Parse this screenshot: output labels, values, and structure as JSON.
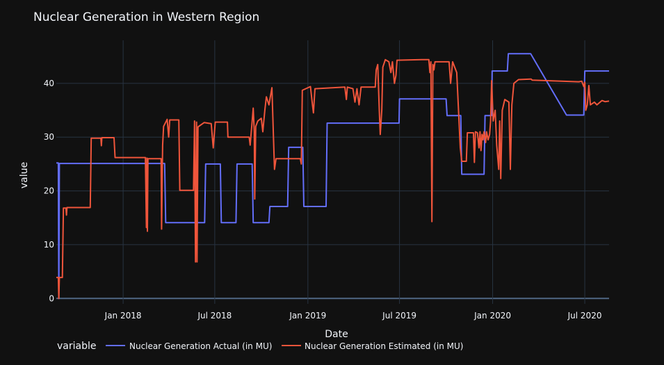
{
  "chart_data": {
    "type": "line",
    "title": "Nuclear Generation in Western Region",
    "xlabel": "Date",
    "ylabel": "value",
    "x_range": [
      "2017-08-22",
      "2020-08-18"
    ],
    "ylim": [
      -1,
      48
    ],
    "grid": true,
    "legend_title": "variable",
    "legend_placement": "bottom",
    "x_ticks": [
      {
        "date": "2018-01-01",
        "label": "Jan 2018"
      },
      {
        "date": "2018-07-01",
        "label": "Jul 2018"
      },
      {
        "date": "2019-01-01",
        "label": "Jan 2019"
      },
      {
        "date": "2019-07-01",
        "label": "Jul 2019"
      },
      {
        "date": "2020-01-01",
        "label": "Jan 2020"
      },
      {
        "date": "2020-07-01",
        "label": "Jul 2020"
      }
    ],
    "y_ticks": [
      0,
      10,
      20,
      30,
      40
    ],
    "series": [
      {
        "name": "Nuclear Generation Actual (in MU)",
        "color": "#636efa",
        "points": [
          [
            "2017-08-22",
            25.2
          ],
          [
            "2017-08-26",
            25.2
          ],
          [
            "2017-08-27",
            0
          ],
          [
            "2017-08-28",
            25.1
          ],
          [
            "2018-03-24",
            25.1
          ],
          [
            "2018-03-26",
            14.1
          ],
          [
            "2018-06-11",
            14.1
          ],
          [
            "2018-06-13",
            25.0
          ],
          [
            "2018-07-12",
            25.0
          ],
          [
            "2018-07-14",
            14.1
          ],
          [
            "2018-08-12",
            14.1
          ],
          [
            "2018-08-14",
            25.0
          ],
          [
            "2018-09-13",
            25.0
          ],
          [
            "2018-09-15",
            14.1
          ],
          [
            "2018-10-16",
            14.1
          ],
          [
            "2018-10-18",
            17.1
          ],
          [
            "2018-11-22",
            17.1
          ],
          [
            "2018-11-24",
            28.1
          ],
          [
            "2018-12-22",
            28.1
          ],
          [
            "2018-12-24",
            17.1
          ],
          [
            "2019-02-06",
            17.1
          ],
          [
            "2019-02-08",
            32.6
          ],
          [
            "2019-06-30",
            32.6
          ],
          [
            "2019-07-01",
            37.1
          ],
          [
            "2019-10-01",
            37.1
          ],
          [
            "2019-10-03",
            34.0
          ],
          [
            "2019-10-30",
            34.0
          ],
          [
            "2019-11-01",
            23.1
          ],
          [
            "2019-12-15",
            23.1
          ],
          [
            "2019-12-17",
            34.0
          ],
          [
            "2019-12-30",
            34.0
          ],
          [
            "2019-12-31",
            42.3
          ],
          [
            "2020-01-30",
            42.3
          ],
          [
            "2020-02-01",
            45.5
          ],
          [
            "2020-03-16",
            45.5
          ],
          [
            "2020-05-26",
            34.1
          ],
          [
            "2020-06-29",
            34.1
          ],
          [
            "2020-07-01",
            42.3
          ],
          [
            "2020-08-18",
            42.3
          ]
        ]
      },
      {
        "name": "Nuclear Generation Estimated (in MU)",
        "color": "#ef553b",
        "points": [
          [
            "2017-08-22",
            3.9
          ],
          [
            "2017-08-26",
            3.9
          ],
          [
            "2017-08-27",
            0
          ],
          [
            "2017-08-28",
            3.9
          ],
          [
            "2017-09-03",
            3.9
          ],
          [
            "2017-09-05",
            16.8
          ],
          [
            "2017-09-10",
            16.8
          ],
          [
            "2017-09-11",
            15.5
          ],
          [
            "2017-09-12",
            16.9
          ],
          [
            "2017-10-28",
            16.9
          ],
          [
            "2017-10-30",
            29.8
          ],
          [
            "2017-11-18",
            29.8
          ],
          [
            "2017-11-19",
            28.4
          ],
          [
            "2017-11-20",
            29.9
          ],
          [
            "2017-12-14",
            29.9
          ],
          [
            "2017-12-16",
            26.2
          ],
          [
            "2018-02-14",
            26.2
          ],
          [
            "2018-02-16",
            13.2
          ],
          [
            "2018-02-17",
            26.1
          ],
          [
            "2018-02-18",
            12.5
          ],
          [
            "2018-02-19",
            26.0
          ],
          [
            "2018-03-17",
            26.0
          ],
          [
            "2018-03-18",
            12.9
          ],
          [
            "2018-03-20",
            28.5
          ],
          [
            "2018-03-22",
            32.0
          ],
          [
            "2018-03-29",
            33.3
          ],
          [
            "2018-04-01",
            30.0
          ],
          [
            "2018-04-03",
            33.2
          ],
          [
            "2018-04-21",
            33.2
          ],
          [
            "2018-04-23",
            20.1
          ],
          [
            "2018-05-20",
            20.1
          ],
          [
            "2018-05-22",
            33.0
          ],
          [
            "2018-05-24",
            6.8
          ],
          [
            "2018-05-26",
            32.8
          ],
          [
            "2018-05-27",
            6.8
          ],
          [
            "2018-05-29",
            31.9
          ],
          [
            "2018-06-10",
            32.7
          ],
          [
            "2018-06-24",
            32.5
          ],
          [
            "2018-06-28",
            28.0
          ],
          [
            "2018-07-02",
            32.8
          ],
          [
            "2018-07-26",
            32.8
          ],
          [
            "2018-07-27",
            30.0
          ],
          [
            "2018-09-07",
            30.0
          ],
          [
            "2018-09-09",
            28.5
          ],
          [
            "2018-09-13",
            33.0
          ],
          [
            "2018-09-15",
            35.4
          ],
          [
            "2018-09-17",
            31.0
          ],
          [
            "2018-09-18",
            18.5
          ],
          [
            "2018-09-20",
            32.0
          ],
          [
            "2018-09-24",
            33.0
          ],
          [
            "2018-10-01",
            33.5
          ],
          [
            "2018-10-04",
            31.0
          ],
          [
            "2018-10-08",
            35.0
          ],
          [
            "2018-10-11",
            37.5
          ],
          [
            "2018-10-16",
            36.0
          ],
          [
            "2018-10-22",
            39.2
          ],
          [
            "2018-10-25",
            30.0
          ],
          [
            "2018-10-27",
            24.0
          ],
          [
            "2018-10-30",
            26.0
          ],
          [
            "2018-12-17",
            26.0
          ],
          [
            "2018-12-19",
            25.0
          ],
          [
            "2018-12-21",
            38.7
          ],
          [
            "2019-01-06",
            39.4
          ],
          [
            "2019-01-10",
            36.0
          ],
          [
            "2019-01-12",
            34.5
          ],
          [
            "2019-01-15",
            39.0
          ],
          [
            "2019-03-15",
            39.3
          ],
          [
            "2019-03-18",
            37.0
          ],
          [
            "2019-03-20",
            39.3
          ],
          [
            "2019-03-31",
            39.0
          ],
          [
            "2019-04-04",
            36.5
          ],
          [
            "2019-04-08",
            39.0
          ],
          [
            "2019-04-12",
            36.0
          ],
          [
            "2019-04-16",
            39.3
          ],
          [
            "2019-05-14",
            39.3
          ],
          [
            "2019-05-16",
            42.5
          ],
          [
            "2019-05-19",
            43.5
          ],
          [
            "2019-05-22",
            35.0
          ],
          [
            "2019-05-24",
            30.5
          ],
          [
            "2019-05-27",
            35.0
          ],
          [
            "2019-05-29",
            43.0
          ],
          [
            "2019-06-03",
            44.4
          ],
          [
            "2019-06-10",
            44.0
          ],
          [
            "2019-06-14",
            42.0
          ],
          [
            "2019-06-17",
            44.0
          ],
          [
            "2019-06-21",
            40.0
          ],
          [
            "2019-06-24",
            41.5
          ],
          [
            "2019-06-26",
            44.3
          ],
          [
            "2019-08-14",
            44.4
          ],
          [
            "2019-08-28",
            44.4
          ],
          [
            "2019-08-30",
            42.0
          ],
          [
            "2019-09-01",
            44.0
          ],
          [
            "2019-09-03",
            14.3
          ],
          [
            "2019-09-05",
            43.5
          ],
          [
            "2019-09-07",
            42.5
          ],
          [
            "2019-09-09",
            44.0
          ],
          [
            "2019-10-07",
            44.0
          ],
          [
            "2019-10-10",
            40.0
          ],
          [
            "2019-10-14",
            44.0
          ],
          [
            "2019-10-22",
            42.0
          ],
          [
            "2019-10-29",
            28.0
          ],
          [
            "2019-11-01",
            25.5
          ],
          [
            "2019-11-10",
            25.5
          ],
          [
            "2019-11-12",
            30.8
          ],
          [
            "2019-11-24",
            30.8
          ],
          [
            "2019-11-26",
            25.3
          ],
          [
            "2019-11-28",
            31.0
          ],
          [
            "2019-12-02",
            30.8
          ],
          [
            "2019-12-05",
            28.0
          ],
          [
            "2019-12-07",
            31.0
          ],
          [
            "2019-12-09",
            27.5
          ],
          [
            "2019-12-11",
            30.5
          ],
          [
            "2019-12-13",
            29.5
          ],
          [
            "2019-12-15",
            31.0
          ],
          [
            "2019-12-18",
            29.0
          ],
          [
            "2019-12-20",
            31.0
          ],
          [
            "2019-12-23",
            29.5
          ],
          [
            "2019-12-26",
            30.5
          ],
          [
            "2019-12-28",
            33.0
          ],
          [
            "2019-12-30",
            40.5
          ],
          [
            "2020-01-02",
            33.0
          ],
          [
            "2020-01-06",
            35.0
          ],
          [
            "2020-01-09",
            28.5
          ],
          [
            "2020-01-13",
            24.0
          ],
          [
            "2020-01-15",
            33.0
          ],
          [
            "2020-01-17",
            22.3
          ],
          [
            "2020-01-20",
            35.0
          ],
          [
            "2020-01-25",
            37.0
          ],
          [
            "2020-02-02",
            36.5
          ],
          [
            "2020-02-05",
            24.0
          ],
          [
            "2020-02-08",
            36.0
          ],
          [
            "2020-02-12",
            40.0
          ],
          [
            "2020-02-21",
            40.7
          ],
          [
            "2020-03-17",
            40.8
          ],
          [
            "2020-03-19",
            40.6
          ],
          [
            "2020-06-19",
            40.3
          ],
          [
            "2020-06-25",
            40.4
          ],
          [
            "2020-06-29",
            39.4
          ],
          [
            "2020-07-01",
            40.2
          ],
          [
            "2020-07-03",
            35.0
          ],
          [
            "2020-07-06",
            36.0
          ],
          [
            "2020-07-09",
            39.6
          ],
          [
            "2020-07-12",
            36.0
          ],
          [
            "2020-07-20",
            36.5
          ],
          [
            "2020-07-25",
            36.0
          ],
          [
            "2020-08-04",
            36.8
          ],
          [
            "2020-08-10",
            36.6
          ],
          [
            "2020-08-18",
            36.7
          ]
        ]
      }
    ]
  }
}
